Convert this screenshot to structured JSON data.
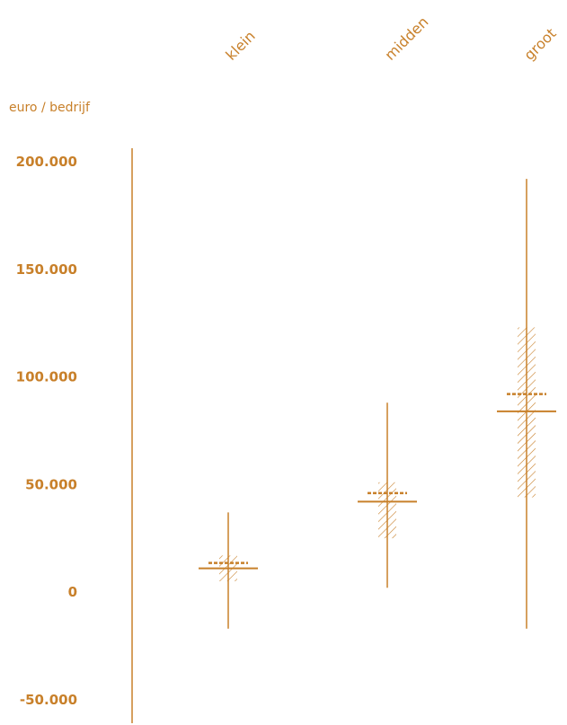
{
  "chart_data": {
    "type": "range",
    "ylabel": "euro / bedrijf",
    "categories": [
      "klein",
      "midden",
      "groot"
    ],
    "yticks": [
      200000,
      150000,
      100000,
      50000,
      0,
      -50000
    ],
    "ytick_labels": [
      "200.000",
      "150.000",
      "100.000",
      "50.000",
      "0",
      "-50.000"
    ],
    "ylim": [
      -60000,
      205000
    ],
    "series": [
      {
        "category": "klein",
        "min": -17000,
        "max": 37000,
        "band_low": 5000,
        "band_high": 17000,
        "mean": 11000,
        "mean_dashed": 13500
      },
      {
        "category": "midden",
        "min": 2000,
        "max": 88000,
        "band_low": 25000,
        "band_high": 51000,
        "mean": 42000,
        "mean_dashed": 46000
      },
      {
        "category": "groot",
        "min": -17000,
        "max": 192000,
        "band_low": 44000,
        "band_high": 123000,
        "mean": 84000,
        "mean_dashed": 92000
      }
    ],
    "colors": {
      "main": "#c8802a"
    }
  }
}
